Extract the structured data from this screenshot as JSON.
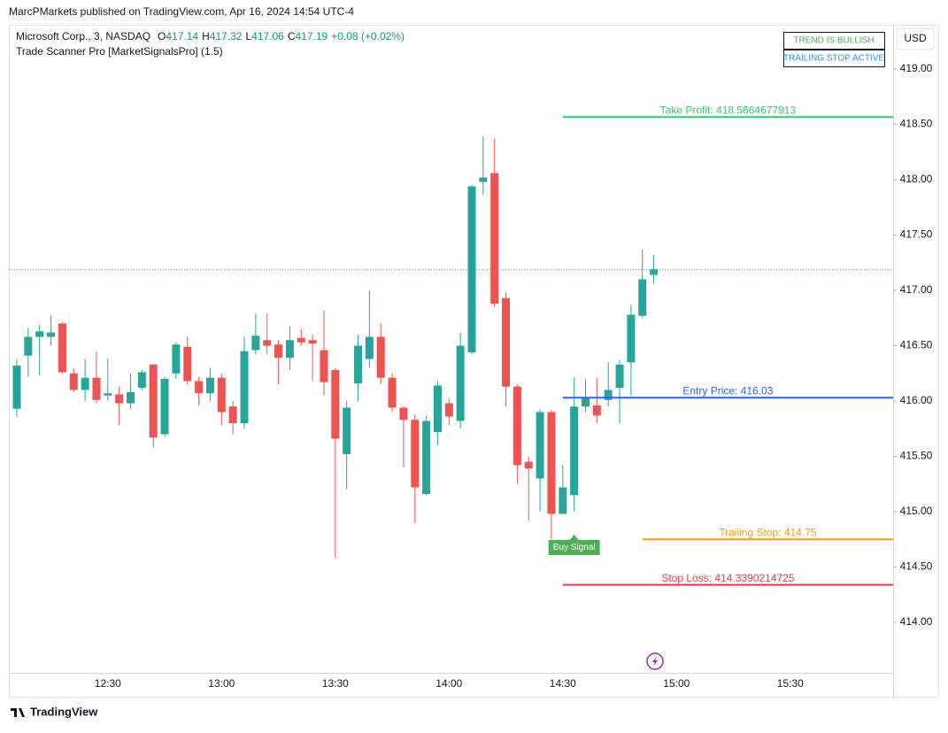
{
  "header": {
    "published": "MarcPMarkets published on TradingView.com, Apr 16, 2024 14:54 UTC-4"
  },
  "legend": {
    "symbol": "Microsoft Corp., 3, NASDAQ",
    "ohlc": [
      {
        "label": "O",
        "value": 417.14
      },
      {
        "label": "H",
        "value": 417.32
      },
      {
        "label": "L",
        "value": 417.06
      },
      {
        "label": "C",
        "value": 417.19
      }
    ],
    "change": "+0.08 (+0.02%)",
    "indicator": "Trade Scanner Pro [MarketSignalsPro] (1.5)"
  },
  "status_boxes": [
    {
      "text": "TREND IS BULLISH",
      "color": "#4caf50"
    },
    {
      "text": "TRAILING STOP ACTIVE",
      "color": "#2196f3"
    }
  ],
  "currency": "USD",
  "footer": "TradingView",
  "chart_data": {
    "type": "candlestick",
    "up_color": "#26a69a",
    "down_color": "#ef5350",
    "grid": false,
    "categories": [
      null,
      null,
      null,
      null,
      null,
      null,
      null,
      null,
      "12:30",
      null,
      null,
      null,
      null,
      null,
      null,
      null,
      null,
      null,
      "13:00",
      null,
      null,
      null,
      null,
      null,
      null,
      null,
      null,
      null,
      "13:30",
      null,
      null,
      null,
      null,
      null,
      null,
      null,
      null,
      null,
      "14:00",
      null,
      null,
      null,
      null,
      null,
      null,
      null,
      null,
      null,
      "14:30",
      null,
      null,
      null,
      null,
      null,
      null,
      null,
      null,
      null,
      "15:00",
      null,
      null,
      null,
      null,
      null,
      null,
      null,
      null,
      null,
      "15:30",
      null,
      null,
      null,
      null,
      null,
      null,
      null,
      null,
      null
    ],
    "open": [
      415.93,
      416.41,
      416.58,
      416.58,
      416.7,
      416.25,
      416.1,
      416.21,
      416.05,
      416.06,
      415.98,
      416.12,
      416.33,
      415.7,
      416.25,
      416.49,
      416.18,
      416.07,
      416.21,
      415.95,
      415.8,
      416.46,
      416.55,
      416.51,
      416.39,
      416.57,
      416.55,
      416.46,
      416.28,
      415.52,
      416.16,
      416.38,
      416.58,
      416.21,
      415.94,
      415.83,
      415.16,
      415.72,
      415.98,
      415.82,
      416.44,
      417.98,
      418.06,
      416.93,
      416.13,
      415.45,
      415.3,
      415.9,
      414.98,
      415.15,
      415.95,
      415.96,
      416.01,
      416.12,
      416.35,
      416.77,
      417.14,
      null,
      null,
      null,
      null,
      null,
      null,
      null,
      null,
      null,
      null,
      null,
      null,
      null,
      null,
      null,
      null,
      null,
      null,
      null,
      null,
      null
    ],
    "high": [
      416.38,
      416.66,
      416.69,
      416.78,
      416.71,
      416.3,
      416.38,
      416.45,
      416.38,
      416.13,
      416.25,
      416.28,
      416.33,
      416.22,
      416.53,
      416.58,
      416.22,
      416.3,
      416.25,
      416.0,
      416.58,
      416.79,
      416.79,
      416.55,
      416.68,
      416.65,
      416.6,
      416.82,
      416.3,
      416.0,
      416.6,
      417.0,
      416.7,
      416.25,
      415.95,
      415.88,
      415.87,
      416.18,
      416.02,
      416.62,
      417.95,
      418.39,
      418.37,
      416.98,
      416.15,
      415.5,
      415.92,
      415.92,
      415.42,
      416.21,
      416.2,
      416.21,
      416.35,
      416.37,
      416.87,
      417.37,
      417.32,
      null,
      null,
      null,
      null,
      null,
      null,
      null,
      null,
      null,
      null,
      null,
      null,
      null,
      null,
      null,
      null,
      null,
      null,
      null,
      null,
      null
    ],
    "low": [
      415.86,
      416.22,
      416.23,
      416.5,
      416.25,
      416.08,
      416.0,
      415.98,
      416.0,
      415.78,
      415.93,
      416.1,
      415.58,
      415.68,
      416.2,
      416.15,
      415.96,
      416.0,
      415.78,
      415.7,
      415.75,
      416.42,
      416.42,
      416.15,
      416.28,
      416.5,
      416.18,
      416.05,
      414.58,
      415.2,
      416.0,
      416.3,
      416.15,
      415.9,
      415.4,
      414.9,
      415.15,
      415.6,
      415.78,
      415.75,
      416.42,
      417.86,
      416.85,
      415.95,
      415.25,
      414.92,
      415.0,
      414.75,
      414.98,
      415.0,
      415.9,
      415.8,
      415.95,
      415.8,
      416.05,
      416.75,
      417.06,
      null,
      null,
      null,
      null,
      null,
      null,
      null,
      null,
      null,
      null,
      null,
      null,
      null,
      null,
      null,
      null,
      null,
      null,
      null,
      null,
      null
    ],
    "close": [
      416.32,
      416.58,
      416.63,
      416.62,
      416.26,
      416.1,
      416.21,
      416.01,
      416.07,
      415.98,
      416.08,
      416.26,
      415.67,
      416.2,
      416.51,
      416.18,
      416.07,
      416.21,
      415.9,
      415.8,
      416.45,
      416.59,
      416.5,
      416.39,
      416.55,
      416.53,
      416.52,
      416.17,
      415.66,
      415.94,
      416.5,
      416.58,
      416.21,
      415.94,
      415.83,
      415.22,
      415.82,
      416.14,
      415.86,
      416.5,
      417.94,
      418.02,
      416.88,
      416.13,
      415.42,
      415.39,
      415.9,
      414.98,
      415.22,
      415.95,
      416.03,
      415.87,
      416.1,
      416.33,
      416.78,
      417.1,
      417.19,
      null,
      null,
      null,
      null,
      null,
      null,
      null,
      null,
      null,
      null,
      null,
      null,
      null,
      null,
      null,
      null,
      null,
      null,
      null,
      null,
      null
    ],
    "levels": [
      {
        "label": "Take Profit: 418.5664677913",
        "value": 418.5664677913,
        "color": "#2ecc71"
      },
      {
        "label": "Entry Price: 416.03",
        "value": 416.03,
        "color": "#2962ff"
      },
      {
        "label": "Trailing Stop: 414.75",
        "value": 414.75,
        "color": "#f39c12"
      },
      {
        "label": "Stop Loss: 414.3390214725",
        "value": 414.3390214725,
        "color": "#f23645"
      }
    ],
    "signal": {
      "label": "Buy Signal",
      "color": "#4caf50"
    },
    "ylim": [
      413.544,
      419.4
    ],
    "yticks": [
      {
        "value": 414,
        "label": "414.00"
      },
      {
        "value": 414.5,
        "label": "414.50"
      },
      {
        "value": 415,
        "label": "415.00"
      },
      {
        "value": 415.5,
        "label": "415.50"
      },
      {
        "value": 416,
        "label": "416.00"
      },
      {
        "value": 416.5,
        "label": "416.50"
      },
      {
        "value": 417,
        "label": "417.00"
      },
      {
        "value": 417.5,
        "label": "417.50"
      },
      {
        "value": 418,
        "label": "418.00"
      },
      {
        "value": 418.5,
        "label": "418.50"
      },
      {
        "value": 419,
        "label": "419.00"
      }
    ]
  }
}
